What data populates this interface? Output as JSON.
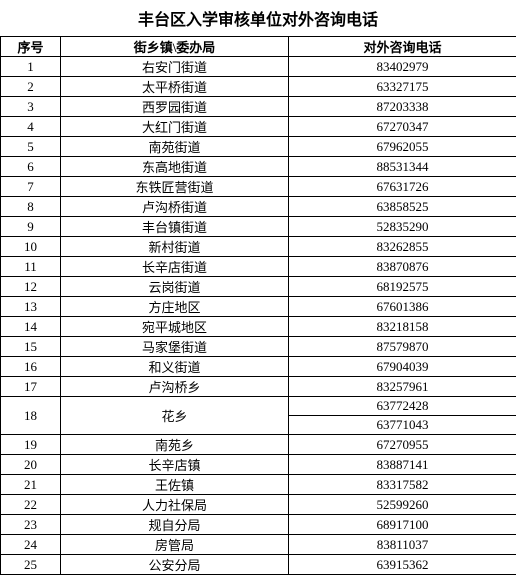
{
  "title": "丰台区入学审核单位对外咨询电话",
  "headers": {
    "seq": "序号",
    "unit": "街乡镇\\委办局",
    "phone": "对外咨询电话"
  },
  "rows": [
    {
      "seq": "1",
      "unit": "右安门街道",
      "phone": "83402979"
    },
    {
      "seq": "2",
      "unit": "太平桥街道",
      "phone": "63327175"
    },
    {
      "seq": "3",
      "unit": "西罗园街道",
      "phone": "87203338"
    },
    {
      "seq": "4",
      "unit": "大红门街道",
      "phone": "67270347"
    },
    {
      "seq": "5",
      "unit": "南苑街道",
      "phone": "67962055"
    },
    {
      "seq": "6",
      "unit": "东高地街道",
      "phone": "88531344"
    },
    {
      "seq": "7",
      "unit": "东铁匠营街道",
      "phone": "67631726"
    },
    {
      "seq": "8",
      "unit": "卢沟桥街道",
      "phone": "63858525"
    },
    {
      "seq": "9",
      "unit": "丰台镇街道",
      "phone": "52835290"
    },
    {
      "seq": "10",
      "unit": "新村街道",
      "phone": "83262855"
    },
    {
      "seq": "11",
      "unit": "长辛店街道",
      "phone": "83870876"
    },
    {
      "seq": "12",
      "unit": "云岗街道",
      "phone": "68192575"
    },
    {
      "seq": "13",
      "unit": "方庄地区",
      "phone": "67601386"
    },
    {
      "seq": "14",
      "unit": "宛平城地区",
      "phone": "83218158"
    },
    {
      "seq": "15",
      "unit": "马家堡街道",
      "phone": "87579870"
    },
    {
      "seq": "16",
      "unit": "和义街道",
      "phone": "67904039"
    },
    {
      "seq": "17",
      "unit": "卢沟桥乡",
      "phone": "83257961"
    },
    {
      "seq": "18",
      "unit": "花乡",
      "phones": [
        "63772428",
        "63771043"
      ],
      "rowspan": 2
    },
    {
      "seq": "19",
      "unit": "南苑乡",
      "phone": "67270955"
    },
    {
      "seq": "20",
      "unit": "长辛店镇",
      "phone": "83887141"
    },
    {
      "seq": "21",
      "unit": "王佐镇",
      "phone": "83317582"
    },
    {
      "seq": "22",
      "unit": "人力社保局",
      "phone": "52599260"
    },
    {
      "seq": "23",
      "unit": "规自分局",
      "phone": "68917100"
    },
    {
      "seq": "24",
      "unit": "房管局",
      "phone": "83811037"
    },
    {
      "seq": "25",
      "unit": "公安分局",
      "phone": "63915362"
    }
  ]
}
